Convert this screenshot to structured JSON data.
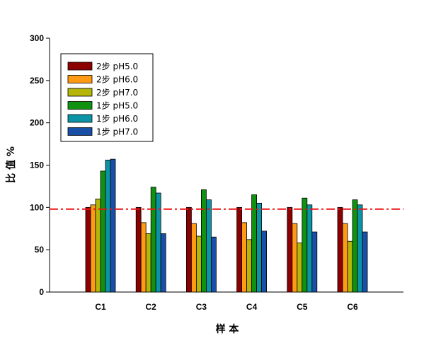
{
  "chart_data": {
    "type": "bar",
    "title": "",
    "xlabel": "样 本",
    "ylabel": "比 值 %",
    "ylim": [
      0,
      300
    ],
    "yticks": [
      0,
      50,
      100,
      150,
      200,
      250,
      300
    ],
    "grid": false,
    "legend_position": "top-left",
    "categories": [
      "C1",
      "C2",
      "C3",
      "C4",
      "C5",
      "C6"
    ],
    "series": [
      {
        "name": "2步  pH5.0",
        "color": "#8b0000",
        "values": [
          100,
          100,
          100,
          100,
          100,
          100
        ]
      },
      {
        "name": "2步  pH6.0",
        "color": "#ff9a14",
        "values": [
          103,
          82,
          81,
          82,
          81,
          81
        ]
      },
      {
        "name": "2步  pH7.0",
        "color": "#b5b50a",
        "values": [
          110,
          69,
          66,
          62,
          58,
          60
        ]
      },
      {
        "name": "1步 pH5.0",
        "color": "#109210",
        "values": [
          143,
          124,
          121,
          115,
          111,
          109
        ]
      },
      {
        "name": "1步  pH6.0",
        "color": "#0d93a6",
        "values": [
          156,
          117,
          109,
          105,
          103,
          103
        ]
      },
      {
        "name": "1步  pH7.0",
        "color": "#1850a8",
        "values": [
          157,
          69,
          65,
          72,
          71,
          71
        ]
      }
    ],
    "reference_line": {
      "value": 98,
      "color": "#ee1111",
      "style": "dash-dot"
    }
  }
}
